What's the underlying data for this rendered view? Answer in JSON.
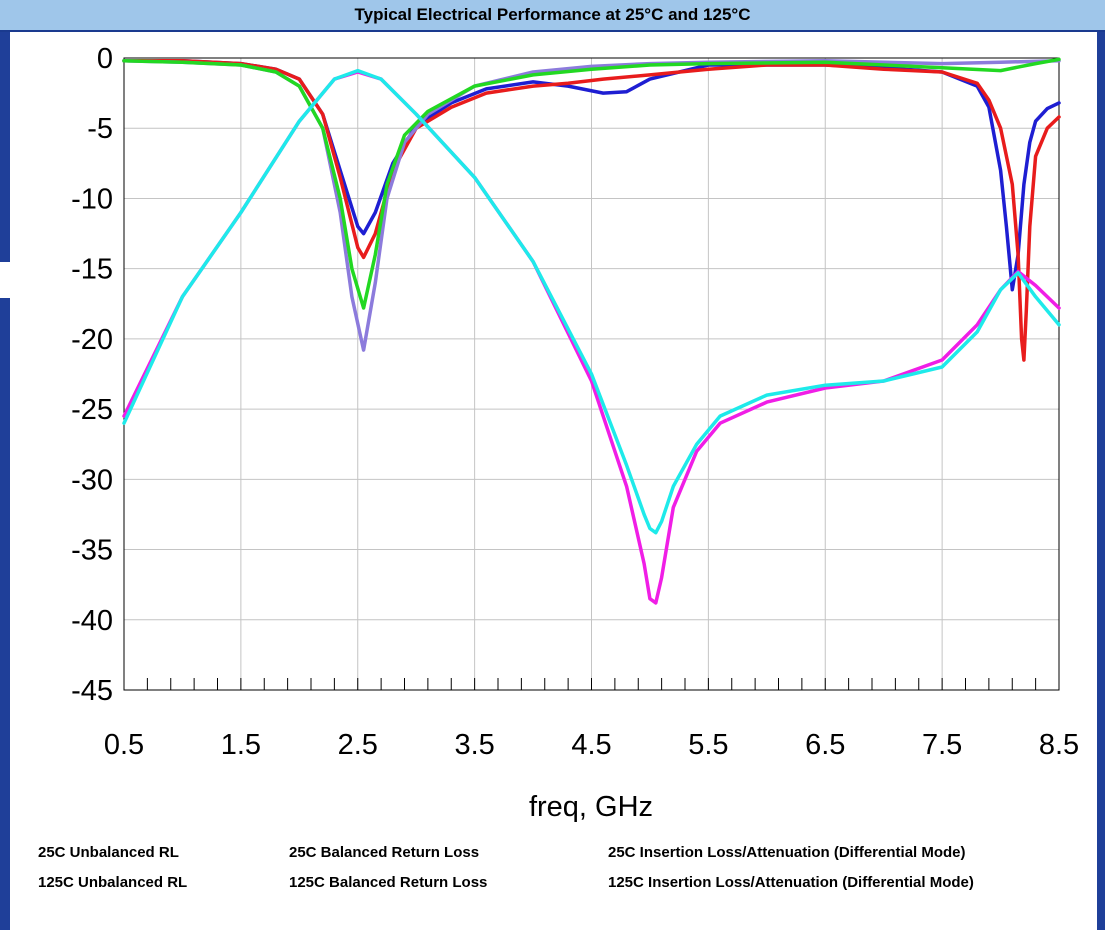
{
  "title": "Typical Electrical Performance at 25°C and 125°C",
  "chart_data": {
    "type": "line",
    "title": "Typical Electrical Performance at 25°C and 125°C",
    "xlabel": "freq, GHz",
    "ylabel": "",
    "xlim": [
      0.5,
      8.5
    ],
    "ylim": [
      -45,
      0
    ],
    "xticks": [
      "0.5",
      "1.5",
      "2.5",
      "3.5",
      "4.5",
      "5.5",
      "6.5",
      "7.5",
      "8.5"
    ],
    "yticks": [
      "0",
      "-5",
      "-10",
      "-15",
      "-20",
      "-25",
      "-30",
      "-35",
      "-40",
      "-45"
    ],
    "grid": true,
    "legend_placement": "bottom",
    "series": [
      {
        "name": "25C Unbalanced RL",
        "color": "#1e1ed2",
        "x": [
          0.5,
          1.0,
          1.5,
          1.8,
          2.0,
          2.2,
          2.35,
          2.5,
          2.55,
          2.65,
          2.8,
          3.0,
          3.3,
          3.6,
          4.0,
          4.3,
          4.6,
          4.8,
          5.0,
          5.5,
          6.5,
          7.0,
          7.5,
          7.8,
          7.9,
          8.0,
          8.05,
          8.1,
          8.15,
          8.2,
          8.25,
          8.3,
          8.4,
          8.5
        ],
        "values": [
          -0.2,
          -0.2,
          -0.4,
          -0.8,
          -1.5,
          -4,
          -8,
          -12,
          -12.5,
          -11,
          -7.5,
          -4.8,
          -3.2,
          -2.2,
          -1.7,
          -2,
          -2.5,
          -2.4,
          -1.5,
          -0.5,
          -0.5,
          -0.7,
          -1.0,
          -2,
          -3.5,
          -8,
          -12,
          -16.5,
          -14,
          -9,
          -6,
          -4.5,
          -3.6,
          -3.2
        ]
      },
      {
        "name": "125C Unbalanced RL",
        "color": "#e81c1c",
        "x": [
          0.5,
          1.0,
          1.5,
          1.8,
          2.0,
          2.2,
          2.35,
          2.5,
          2.55,
          2.65,
          2.8,
          3.0,
          3.3,
          3.6,
          4.0,
          4.3,
          4.6,
          5.0,
          5.5,
          6.0,
          6.5,
          7.0,
          7.5,
          7.8,
          7.9,
          8.0,
          8.1,
          8.15,
          8.18,
          8.2,
          8.22,
          8.25,
          8.3,
          8.4,
          8.5
        ],
        "values": [
          -0.2,
          -0.2,
          -0.4,
          -0.8,
          -1.5,
          -4,
          -8.5,
          -13.5,
          -14.2,
          -12.5,
          -8,
          -5,
          -3.5,
          -2.5,
          -2,
          -1.8,
          -1.5,
          -1.2,
          -0.8,
          -0.5,
          -0.5,
          -0.8,
          -1.0,
          -1.8,
          -3,
          -5,
          -9,
          -14,
          -20,
          -21.5,
          -18,
          -12,
          -7,
          -5,
          -4.2
        ]
      },
      {
        "name": "25C Balanced Return Loss",
        "color": "#8c7bdc",
        "x": [
          0.5,
          1.0,
          1.5,
          1.8,
          2.0,
          2.2,
          2.35,
          2.45,
          2.55,
          2.65,
          2.75,
          2.9,
          3.1,
          3.5,
          4.0,
          4.5,
          5.0,
          5.5,
          6.5,
          7.5,
          8.0,
          8.5
        ],
        "values": [
          -0.2,
          -0.3,
          -0.5,
          -1,
          -2,
          -5,
          -11,
          -17,
          -20.8,
          -16,
          -10,
          -6,
          -4,
          -2,
          -1,
          -0.6,
          -0.4,
          -0.3,
          -0.2,
          -0.4,
          -0.3,
          -0.2
        ]
      },
      {
        "name": "125C Balanced Return Loss",
        "color": "#22d822",
        "x": [
          0.5,
          1.0,
          1.5,
          1.8,
          2.0,
          2.2,
          2.35,
          2.45,
          2.55,
          2.65,
          2.75,
          2.9,
          3.1,
          3.5,
          4.0,
          4.5,
          5.0,
          5.5,
          6.5,
          7.5,
          8.0,
          8.3,
          8.5
        ],
        "values": [
          -0.2,
          -0.3,
          -0.5,
          -1,
          -2,
          -5,
          -10,
          -15,
          -17.8,
          -14,
          -9,
          -5.5,
          -3.8,
          -2,
          -1.2,
          -0.8,
          -0.5,
          -0.4,
          -0.3,
          -0.7,
          -0.9,
          -0.4,
          -0.1
        ]
      },
      {
        "name": "25C Insertion Loss/Attenuation (Differential Mode)",
        "color": "#f01ee6",
        "x": [
          0.5,
          1.0,
          1.5,
          2.0,
          2.3,
          2.5,
          2.7,
          3.0,
          3.5,
          4.0,
          4.5,
          4.8,
          4.95,
          5.0,
          5.05,
          5.1,
          5.2,
          5.4,
          5.6,
          6.0,
          6.5,
          7.0,
          7.5,
          7.8,
          8.0,
          8.15,
          8.3,
          8.5
        ],
        "values": [
          -25.5,
          -17,
          -11,
          -4.5,
          -1.5,
          -1,
          -1.5,
          -4,
          -8.5,
          -14.5,
          -23,
          -30.5,
          -36,
          -38.5,
          -38.8,
          -37,
          -32,
          -28,
          -26,
          -24.5,
          -23.5,
          -23,
          -21.5,
          -19,
          -16.5,
          -15.2,
          -16.2,
          -17.8
        ]
      },
      {
        "name": "125C Insertion Loss/Attenuation (Differential Mode)",
        "color": "#1eeaea",
        "x": [
          0.5,
          1.0,
          1.5,
          2.0,
          2.3,
          2.5,
          2.7,
          3.0,
          3.5,
          4.0,
          4.5,
          4.8,
          4.95,
          5.0,
          5.05,
          5.1,
          5.2,
          5.4,
          5.6,
          6.0,
          6.5,
          7.0,
          7.5,
          7.8,
          8.0,
          8.15,
          8.3,
          8.5
        ],
        "values": [
          -26,
          -17,
          -11,
          -4.5,
          -1.5,
          -0.9,
          -1.5,
          -4,
          -8.5,
          -14.5,
          -22.5,
          -29,
          -32.5,
          -33.5,
          -33.8,
          -33,
          -30.5,
          -27.5,
          -25.5,
          -24,
          -23.3,
          -23,
          -22,
          -19.5,
          -16.5,
          -15.3,
          -17,
          -19
        ]
      }
    ]
  }
}
